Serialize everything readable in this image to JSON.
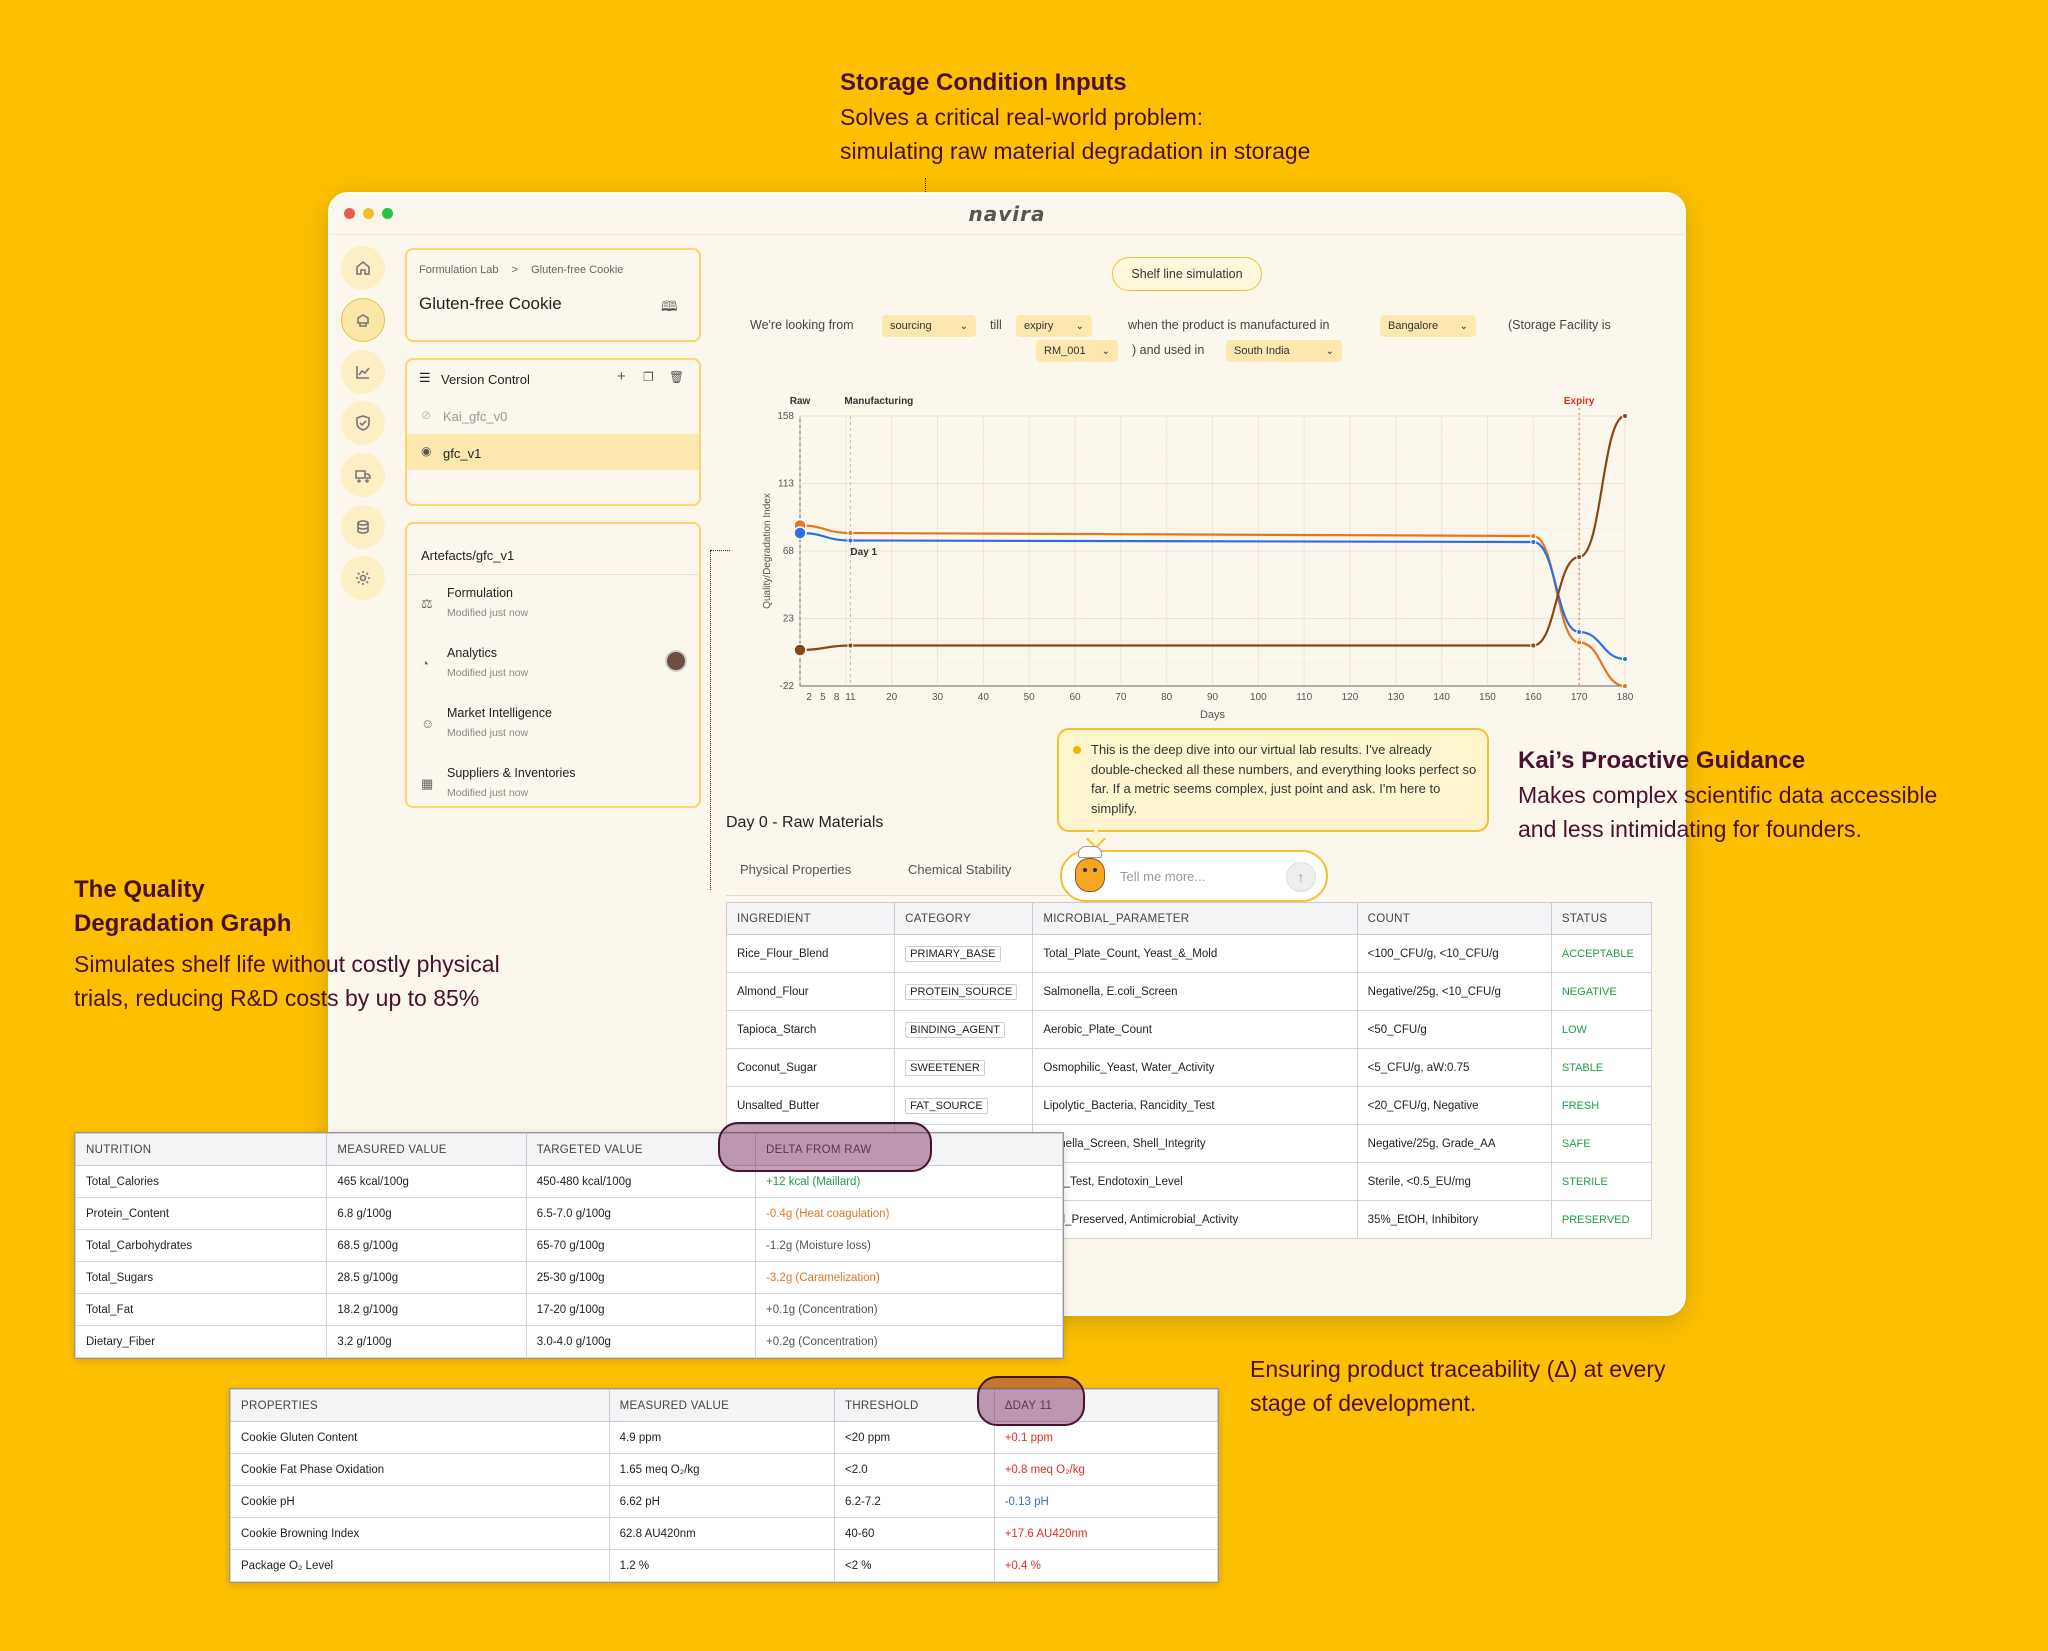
{
  "callouts": {
    "storage": {
      "title": "Storage Condition Inputs",
      "line1": "Solves a critical real-world problem:",
      "line2": "simulating raw material degradation in storage"
    },
    "kai": {
      "title": "Kai’s Proactive Guidance",
      "line1": "Makes complex scientific data accessible",
      "line2": "and less intimidating for founders."
    },
    "graph": {
      "title1": "The Quality",
      "title2": "Degradation Graph",
      "line1": "Simulates shelf life without costly physical",
      "line2": "trials, reducing R&D costs by up to 85%"
    },
    "trace": {
      "line1": "Ensuring product traceability (Δ) at every",
      "line2": "stage of development."
    }
  },
  "app": {
    "brand": "navira",
    "sidebar_icons": [
      "home-icon",
      "lab-icon",
      "chart-icon",
      "shield-icon",
      "truck-icon",
      "database-icon",
      "settings-icon"
    ],
    "breadcrumb": {
      "root": "Formulation Lab",
      "sep": ">",
      "current": "Gluten-free Cookie"
    },
    "project_title": "Gluten-free Cookie",
    "version_control": {
      "title": "Version Control",
      "versions": [
        {
          "name": "Kai_gfc_v0",
          "hidden": true
        },
        {
          "name": "gfc_v1",
          "hidden": false,
          "selected": true
        }
      ]
    },
    "artefacts": {
      "title": "Artefacts/gfc_v1",
      "items": [
        {
          "name": "Formulation",
          "meta": "Modified just now",
          "icon": "flask-icon"
        },
        {
          "name": "Analytics",
          "meta": "Modified just now",
          "icon": "pie-icon"
        },
        {
          "name": "Market Intelligence",
          "meta": "Modified just now",
          "icon": "users-icon"
        },
        {
          "name": "Suppliers & Inventories",
          "meta": "Modified just now",
          "icon": "building-icon"
        }
      ]
    },
    "sim_button": "Shelf line simulation",
    "filters": {
      "t1": "We're looking from",
      "from": "sourcing",
      "t2": "till",
      "till": "expiry",
      "t3": "when the product is manufactured in",
      "place": "Bangalore",
      "t4": "(Storage Facility is",
      "facility": "RM_001",
      "t5": ") and used in",
      "region": "South India"
    },
    "section_title": "Day 0 - Raw Materials",
    "tabs": [
      "Physical Properties",
      "Chemical Stability"
    ],
    "kai": {
      "message": "This is the deep dive into our virtual lab results. I've already double-checked all these numbers, and everything looks perfect so far. If a metric seems complex, just point and ask. I'm here to simplify.",
      "placeholder": "Tell me more..."
    },
    "micro_table": {
      "headers": [
        "INGREDIENT",
        "CATEGORY",
        "MICROBIAL_PARAMETER",
        "COUNT",
        "STATUS"
      ],
      "rows": [
        [
          "Rice_Flour_Blend",
          "PRIMARY_BASE",
          "Total_Plate_Count, Yeast_&_Mold",
          "<100_CFU/g, <10_CFU/g",
          "ACCEPTABLE"
        ],
        [
          "Almond_Flour",
          "PROTEIN_SOURCE",
          "Salmonella, E.coli_Screen",
          "Negative/25g, <10_CFU/g",
          "NEGATIVE"
        ],
        [
          "Tapioca_Starch",
          "BINDING_AGENT",
          "Aerobic_Plate_Count",
          "<50_CFU/g",
          "LOW"
        ],
        [
          "Coconut_Sugar",
          "SWEETENER",
          "Osmophilic_Yeast, Water_Activity",
          "<5_CFU/g, aW:0.75",
          "STABLE"
        ],
        [
          "Unsalted_Butter",
          "FAT_SOURCE",
          "Lipolytic_Bacteria, Rancidity_Test",
          "<20_CFU/g, Negative",
          "FRESH"
        ],
        [
          "",
          "",
          "monella_Screen, Shell_Integrity",
          "Negative/25g, Grade_AA",
          "SAFE"
        ],
        [
          "",
          "",
          "rility_Test, Endotoxin_Level",
          "Sterile, <0.5_EU/mg",
          "STERILE"
        ],
        [
          "",
          "",
          "ohol_Preserved, Antimicrobial_Activity",
          "35%_EtOH, Inhibitory",
          "PRESERVED"
        ]
      ]
    }
  },
  "nutrition_table": {
    "headers": [
      "NUTRITION",
      "MEASURED VALUE",
      "TARGETED VALUE",
      "DELTA FROM RAW"
    ],
    "rows": [
      [
        "Total_Calories",
        "465 kcal/100g",
        "450-480 kcal/100g",
        "+12 kcal (Maillard)",
        "green"
      ],
      [
        "Protein_Content",
        "6.8 g/100g",
        "6.5-7.0 g/100g",
        "-0.4g (Heat coagulation)",
        "orange"
      ],
      [
        "Total_Carbohydrates",
        "68.5 g/100g",
        "65-70 g/100g",
        "-1.2g (Moisture loss)",
        "gray"
      ],
      [
        "Total_Sugars",
        "28.5 g/100g",
        "25-30 g/100g",
        "-3.2g (Caramelization)",
        "orange"
      ],
      [
        "Total_Fat",
        "18.2 g/100g",
        "17-20 g/100g",
        "+0.1g (Concentration)",
        "gray"
      ],
      [
        "Dietary_Fiber",
        "3.2 g/100g",
        "3.0-4.0 g/100g",
        "+0.2g (Concentration)",
        "gray"
      ]
    ]
  },
  "properties_table": {
    "headers": [
      "PROPERTIES",
      "MEASURED VALUE",
      "THRESHOLD",
      "ΔDAY 11"
    ],
    "rows": [
      [
        "Cookie Gluten Content",
        "4.9 ppm",
        "<20 ppm",
        "+0.1 ppm",
        "red"
      ],
      [
        "Cookie Fat Phase Oxidation",
        "1.65 meq O₂/kg",
        "<2.0",
        "+0.8 meq O₂/kg",
        "red"
      ],
      [
        "Cookie pH",
        "6.62 pH",
        "6.2-7.2",
        "-0.13 pH",
        "blue"
      ],
      [
        "Cookie Browning Index",
        "62.8 AU420nm",
        "40-60",
        "+17.6 AU420nm",
        "red"
      ],
      [
        "Package O₂ Level",
        "1.2 %",
        "<2 %",
        "+0.4 %",
        "red"
      ]
    ]
  },
  "colors": {
    "accent": "#FDC000",
    "green": "#1E9E4A",
    "orange": "#E5761F",
    "red": "#E0301E",
    "blue": "#2F6FE0",
    "gray": "#555555"
  },
  "chart_data": {
    "type": "line",
    "ylabel": "Quality/Degradation Index",
    "xlabel": "Days",
    "x_ticks": [
      2,
      5,
      8,
      11,
      20,
      30,
      40,
      50,
      60,
      70,
      80,
      90,
      100,
      110,
      120,
      130,
      140,
      150,
      160,
      170,
      180
    ],
    "y_ticks": [
      -22,
      23,
      68,
      113,
      158
    ],
    "xlim": [
      0,
      180
    ],
    "ylim": [
      -22,
      158
    ],
    "annotations": [
      {
        "label": "Raw",
        "x": 0
      },
      {
        "label": "Manufacturing",
        "x": 11
      },
      {
        "label": "Day 1",
        "x": 11
      },
      {
        "label": "Expiry",
        "x": 170
      }
    ],
    "series": [
      {
        "color": "#E5761F",
        "x": [
          0,
          11,
          160,
          170,
          180
        ],
        "y": [
          85,
          80,
          78,
          7,
          -22
        ]
      },
      {
        "color": "#2F6FE0",
        "x": [
          0,
          11,
          160,
          170,
          180
        ],
        "y": [
          80,
          75,
          74,
          14,
          -4
        ]
      },
      {
        "color": "#8B4513",
        "x": [
          0,
          11,
          160,
          170,
          180
        ],
        "y": [
          2,
          5,
          5,
          64,
          158
        ]
      }
    ]
  }
}
